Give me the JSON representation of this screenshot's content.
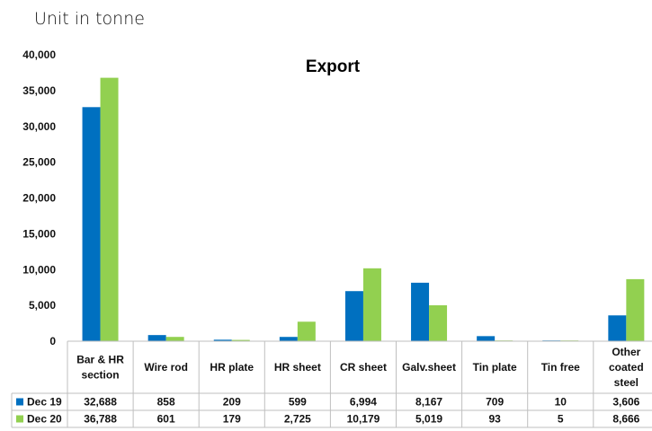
{
  "unit_label": "Unit in tonne",
  "chart_data": {
    "type": "bar",
    "title": "Export",
    "xlabel": "",
    "ylabel": "",
    "ylim": [
      0,
      40000
    ],
    "yticks": [
      "0",
      "5,000",
      "10,000",
      "15,000",
      "20,000",
      "25,000",
      "30,000",
      "35,000",
      "40,000"
    ],
    "categories": [
      [
        "Bar & HR",
        "section"
      ],
      [
        "Wire rod"
      ],
      [
        "HR plate"
      ],
      [
        "HR sheet"
      ],
      [
        "CR sheet"
      ],
      [
        "Galv.sheet"
      ],
      [
        "Tin plate"
      ],
      [
        "Tin free"
      ],
      [
        "Other",
        "coated",
        "steel"
      ]
    ],
    "series": [
      {
        "name": "Dec 19",
        "color": "#0070C0",
        "values": [
          32688,
          858,
          209,
          599,
          6994,
          8167,
          709,
          10,
          3606
        ],
        "labels": [
          "32,688",
          "858",
          "209",
          "599",
          "6,994",
          "8,167",
          "709",
          "10",
          "3,606"
        ]
      },
      {
        "name": "Dec 20",
        "color": "#92D050",
        "values": [
          36788,
          601,
          179,
          2725,
          10179,
          5019,
          93,
          5,
          8666
        ],
        "labels": [
          "36,788",
          "601",
          "179",
          "2,725",
          "10,179",
          "5,019",
          "93",
          "5",
          "8,666"
        ]
      }
    ],
    "grid": false,
    "legend": "data-table"
  }
}
